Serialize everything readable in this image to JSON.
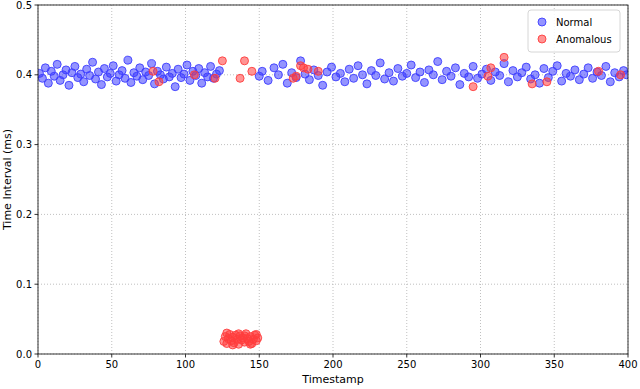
{
  "chart_data": {
    "type": "scatter",
    "x_label": "Timestamp",
    "y_label": "Time Interval (ms)",
    "xlim": [
      0,
      400
    ],
    "ylim": [
      0,
      0.5
    ],
    "xticks": [
      0,
      50,
      100,
      150,
      200,
      250,
      300,
      350,
      400
    ],
    "yticks": [
      {
        "value": 0,
        "label": "0.0"
      },
      0.1,
      0.2,
      0.3,
      0.4,
      0.5
    ],
    "grid": true,
    "legend": "upper right",
    "series": [
      {
        "name": "Normal",
        "color": "#3d3dff",
        "marker": "circle",
        "x": [
          1,
          3,
          5,
          7,
          9,
          11,
          13,
          15,
          17,
          19,
          21,
          23,
          25,
          27,
          29,
          31,
          33,
          35,
          37,
          39,
          41,
          43,
          45,
          47,
          49,
          51,
          53,
          55,
          57,
          59,
          61,
          63,
          65,
          67,
          69,
          71,
          73,
          75,
          77,
          79,
          81,
          83,
          85,
          87,
          89,
          91,
          93,
          95,
          97,
          99,
          101,
          103,
          105,
          107,
          109,
          111,
          113,
          115,
          117,
          119,
          121,
          123,
          150,
          152,
          156,
          160,
          163,
          166,
          169,
          172,
          175,
          178,
          181,
          184,
          187,
          190,
          193,
          196,
          199,
          202,
          205,
          208,
          211,
          214,
          217,
          220,
          223,
          226,
          229,
          232,
          235,
          238,
          241,
          244,
          247,
          250,
          253,
          256,
          259,
          262,
          265,
          268,
          271,
          274,
          277,
          280,
          283,
          286,
          289,
          292,
          295,
          298,
          301,
          304,
          307,
          310,
          313,
          316,
          319,
          322,
          325,
          328,
          331,
          334,
          337,
          340,
          343,
          346,
          349,
          352,
          355,
          358,
          361,
          364,
          367,
          370,
          373,
          376,
          379,
          382,
          385,
          388,
          391,
          394,
          397,
          399
        ],
        "values": [
          0.402,
          0.395,
          0.41,
          0.388,
          0.405,
          0.398,
          0.415,
          0.392,
          0.4,
          0.407,
          0.385,
          0.403,
          0.412,
          0.396,
          0.401,
          0.39,
          0.408,
          0.399,
          0.418,
          0.394,
          0.404,
          0.386,
          0.409,
          0.397,
          0.402,
          0.413,
          0.391,
          0.4,
          0.406,
          0.395,
          0.421,
          0.389,
          0.403,
          0.398,
          0.41,
          0.393,
          0.404,
          0.399,
          0.416,
          0.387,
          0.405,
          0.4,
          0.394,
          0.411,
          0.397,
          0.402,
          0.383,
          0.408,
          0.396,
          0.401,
          0.414,
          0.392,
          0.405,
          0.399,
          0.409,
          0.388,
          0.403,
          0.397,
          0.412,
          0.395,
          0.401,
          0.406,
          0.398,
          0.405,
          0.392,
          0.41,
          0.4,
          0.415,
          0.388,
          0.403,
          0.396,
          0.42,
          0.401,
          0.393,
          0.407,
          0.399,
          0.385,
          0.404,
          0.411,
          0.397,
          0.402,
          0.39,
          0.408,
          0.395,
          0.413,
          0.4,
          0.387,
          0.406,
          0.399,
          0.417,
          0.394,
          0.403,
          0.391,
          0.409,
          0.398,
          0.402,
          0.414,
          0.396,
          0.404,
          0.389,
          0.407,
          0.4,
          0.419,
          0.393,
          0.405,
          0.398,
          0.41,
          0.386,
          0.402,
          0.397,
          0.412,
          0.395,
          0.401,
          0.408,
          0.392,
          0.404,
          0.399,
          0.416,
          0.39,
          0.406,
          0.397,
          0.403,
          0.411,
          0.394,
          0.4,
          0.388,
          0.409,
          0.396,
          0.405,
          0.413,
          0.391,
          0.402,
          0.398,
          0.407,
          0.393,
          0.401,
          0.41,
          0.395,
          0.404,
          0.399,
          0.412,
          0.39,
          0.403,
          0.397,
          0.406,
          0.4
        ]
      },
      {
        "name": "Anomalous",
        "color": "#ff3d3d",
        "marker": "circle",
        "x": [
          78,
          82,
          106,
          120,
          125,
          137,
          140,
          145,
          175,
          178,
          180,
          183,
          190,
          173,
          295,
          305,
          307,
          316,
          335,
          345,
          380,
          395,
          126,
          127,
          128,
          129,
          130,
          131,
          132,
          133,
          134,
          135,
          136,
          137,
          138,
          139,
          140,
          141,
          142,
          143,
          144,
          145,
          146,
          147,
          148,
          149,
          128,
          132,
          136,
          140,
          144,
          148
        ],
        "values": [
          0.405,
          0.39,
          0.4,
          0.395,
          0.42,
          0.395,
          0.42,
          0.405,
          0.398,
          0.413,
          0.41,
          0.408,
          0.405,
          0.395,
          0.383,
          0.398,
          0.41,
          0.425,
          0.387,
          0.39,
          0.405,
          0.4,
          0.018,
          0.025,
          0.015,
          0.022,
          0.028,
          0.019,
          0.024,
          0.016,
          0.027,
          0.021,
          0.014,
          0.026,
          0.02,
          0.023,
          0.017,
          0.029,
          0.022,
          0.018,
          0.025,
          0.015,
          0.021,
          0.027,
          0.019,
          0.023,
          0.03,
          0.013,
          0.029,
          0.026,
          0.014,
          0.028
        ]
      }
    ]
  }
}
